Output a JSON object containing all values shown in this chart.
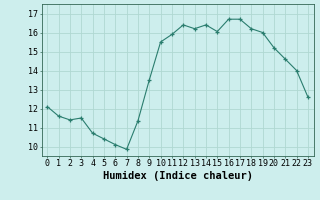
{
  "title": "",
  "xlabel": "Humidex (Indice chaleur)",
  "ylabel": "",
  "x": [
    0,
    1,
    2,
    3,
    4,
    5,
    6,
    7,
    8,
    9,
    10,
    11,
    12,
    13,
    14,
    15,
    16,
    17,
    18,
    19,
    20,
    21,
    22,
    23
  ],
  "y": [
    12.1,
    11.6,
    11.4,
    11.5,
    10.7,
    10.4,
    10.1,
    9.85,
    11.35,
    13.5,
    15.5,
    15.9,
    16.4,
    16.2,
    16.4,
    16.05,
    16.7,
    16.7,
    16.2,
    16.0,
    15.2,
    14.6,
    14.0,
    12.6
  ],
  "line_color": "#2a7d6e",
  "marker": "+",
  "bg_color": "#cdeeed",
  "grid_color": "#b0d8d2",
  "ylim": [
    9.5,
    17.5
  ],
  "xlim": [
    -0.5,
    23.5
  ],
  "yticks": [
    10,
    11,
    12,
    13,
    14,
    15,
    16,
    17
  ],
  "xticks": [
    0,
    1,
    2,
    3,
    4,
    5,
    6,
    7,
    8,
    9,
    10,
    11,
    12,
    13,
    14,
    15,
    16,
    17,
    18,
    19,
    20,
    21,
    22,
    23
  ],
  "xtick_labels": [
    "0",
    "1",
    "2",
    "3",
    "4",
    "5",
    "6",
    "7",
    "8",
    "9",
    "10",
    "11",
    "12",
    "13",
    "14",
    "15",
    "16",
    "17",
    "18",
    "19",
    "20",
    "21",
    "22",
    "23"
  ],
  "tick_fontsize": 6.0,
  "xlabel_fontsize": 7.5,
  "xlabel_fontweight": "bold"
}
